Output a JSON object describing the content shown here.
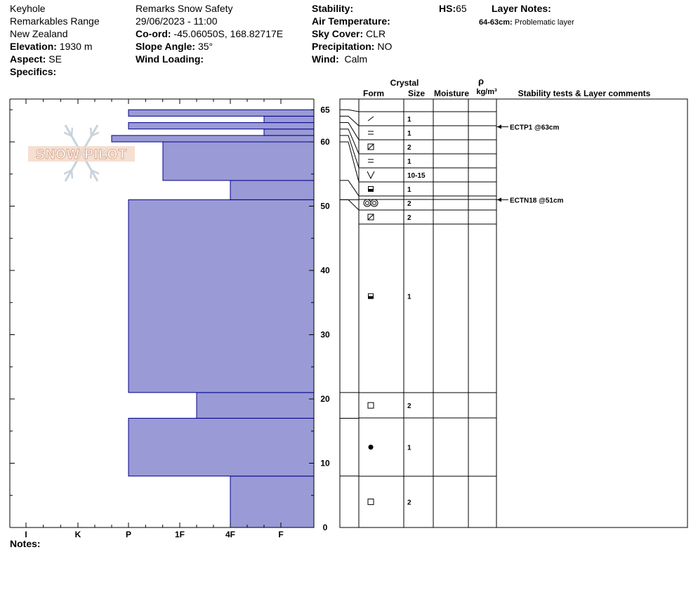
{
  "header": {
    "col1": {
      "location": "Keyhole",
      "range": "Remarkables Range",
      "country": "New Zealand",
      "elevation_label": "Elevation:",
      "elevation": "1930 m",
      "aspect_label": "Aspect:",
      "aspect": "SE",
      "specifics_label": "Specifics:"
    },
    "col2": {
      "observer": "Remarks Snow Safety",
      "datetime": "29/06/2023 - 11:00",
      "coord_label": "Co-ord:",
      "coord": "-45.06050S, 168.82717E",
      "slope_label": "Slope Angle:",
      "slope": "35°",
      "wind_loading_label": "Wind Loading:"
    },
    "col3": {
      "stability_label": "Stability:",
      "air_temp_label": "Air Temperature:",
      "sky_label": "Sky Cover:",
      "sky": "CLR",
      "precip_label": "Precipitation:",
      "precip": "NO",
      "wind_label": "Wind:",
      "wind": "Calm"
    },
    "hs_label": "HS:",
    "hs": "65",
    "layer_notes_label": "Layer Notes:",
    "layer_note_range": "64-63cm:",
    "layer_note_text": "Problematic layer"
  },
  "notes_label": "Notes:",
  "watermark": "SNOW PILOT",
  "table_headers": {
    "crystal": "Crystal",
    "form": "Form",
    "size": "Size",
    "moisture": "Moisture",
    "rho": "ρ",
    "density_unit": "kg/m³",
    "stability": "Stability tests & Layer comments"
  },
  "colors": {
    "layer_fill": "#9a9ad6",
    "layer_stroke": "#00008b"
  },
  "chart_data": {
    "type": "bar",
    "orientation": "horizontal",
    "title": "",
    "ylabel": "",
    "ylim": [
      0,
      67
    ],
    "yticks": [
      0,
      10,
      20,
      30,
      40,
      50,
      60,
      65
    ],
    "xticks": [
      "I",
      "K",
      "P",
      "1F",
      "4F",
      "F"
    ],
    "hardness_layers": [
      {
        "bottom": 0,
        "top": 8,
        "hardness": "4F"
      },
      {
        "bottom": 8,
        "top": 17,
        "hardness": "P"
      },
      {
        "bottom": 17,
        "top": 21,
        "hardness": "1F-"
      },
      {
        "bottom": 21,
        "top": 51,
        "hardness": "P"
      },
      {
        "bottom": 51,
        "top": 54,
        "hardness": "4F"
      },
      {
        "bottom": 54,
        "top": 60,
        "hardness": "1F+"
      },
      {
        "bottom": 60,
        "top": 61,
        "hardness": "P+"
      },
      {
        "bottom": 61,
        "top": 62,
        "hardness": "F+"
      },
      {
        "bottom": 62,
        "top": 63,
        "hardness": "P"
      },
      {
        "bottom": 63,
        "top": 64,
        "hardness": "F+"
      },
      {
        "bottom": 64,
        "top": 65,
        "hardness": "P"
      }
    ],
    "crystal_rows": [
      {
        "bottom": 64,
        "top": 65,
        "form": "slash",
        "size": "1"
      },
      {
        "bottom": 63,
        "top": 64,
        "form": "equals",
        "size": "1"
      },
      {
        "bottom": 62,
        "top": 63,
        "form": "box-slash",
        "size": "2"
      },
      {
        "bottom": 61,
        "top": 62,
        "form": "equals",
        "size": "1"
      },
      {
        "bottom": 60,
        "top": 61,
        "form": "v",
        "size": "10-15"
      },
      {
        "bottom": 54,
        "top": 60,
        "form": "half-filled",
        "size": "1"
      },
      {
        "bottom": 51,
        "top": 54,
        "form": "double-ring",
        "size": "2"
      },
      {
        "bottom": 51,
        "top": 51,
        "form": "box-slash",
        "size": "2"
      },
      {
        "bottom": 21,
        "top": 51,
        "form": "half-filled",
        "size": "1"
      },
      {
        "bottom": 17,
        "top": 21,
        "form": "square",
        "size": "2"
      },
      {
        "bottom": 8,
        "top": 17,
        "form": "dot",
        "size": "1"
      },
      {
        "bottom": 0,
        "top": 8,
        "form": "square",
        "size": "2"
      }
    ],
    "stability_tests": [
      {
        "depth": 63,
        "label": "ECTP1 @63cm"
      },
      {
        "depth": 51,
        "label": "ECTN18 @51cm"
      }
    ]
  }
}
